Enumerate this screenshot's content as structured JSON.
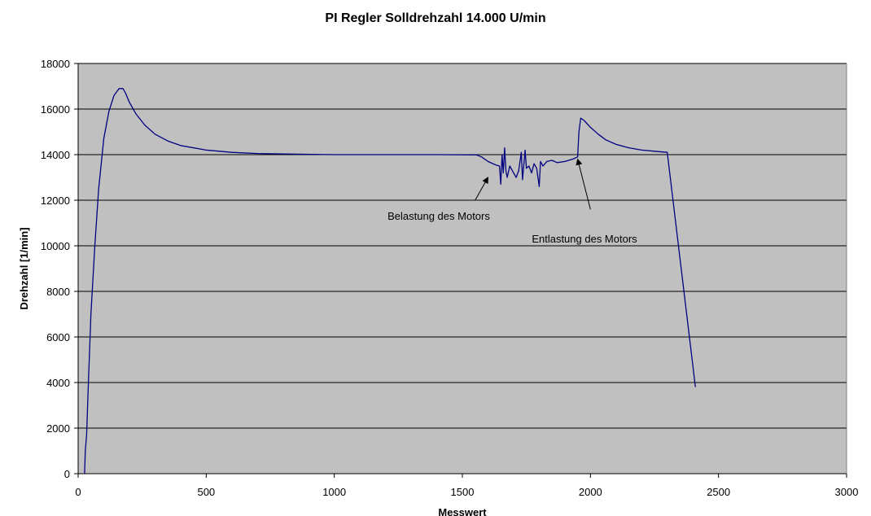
{
  "chart_data": {
    "type": "line",
    "title": "PI Regler Solldrehzahl 14.000 U/min",
    "xlabel": "Messwert",
    "ylabel": "Drehzahl [1/min]",
    "xlim": [
      0,
      3000
    ],
    "ylim": [
      0,
      18000
    ],
    "xticks": [
      0,
      500,
      1000,
      1500,
      2000,
      2500,
      3000
    ],
    "yticks": [
      0,
      2000,
      4000,
      6000,
      8000,
      10000,
      12000,
      14000,
      16000,
      18000
    ],
    "grid": "horizontal",
    "legend": "none",
    "plot_background": "#c0c0c0",
    "line_color": "#000080",
    "series": [
      {
        "points": [
          [
            25,
            0
          ],
          [
            28,
            1000
          ],
          [
            33,
            1700
          ],
          [
            40,
            4000
          ],
          [
            50,
            7000
          ],
          [
            65,
            10000
          ],
          [
            80,
            12500
          ],
          [
            100,
            14700
          ],
          [
            120,
            15900
          ],
          [
            140,
            16600
          ],
          [
            160,
            16900
          ],
          [
            175,
            16900
          ],
          [
            185,
            16700
          ],
          [
            200,
            16300
          ],
          [
            225,
            15800
          ],
          [
            260,
            15300
          ],
          [
            300,
            14900
          ],
          [
            350,
            14600
          ],
          [
            400,
            14400
          ],
          [
            500,
            14200
          ],
          [
            600,
            14100
          ],
          [
            700,
            14050
          ],
          [
            800,
            14030
          ],
          [
            1000,
            14000
          ],
          [
            1200,
            14000
          ],
          [
            1400,
            14000
          ],
          [
            1555,
            13990
          ],
          [
            1575,
            13900
          ],
          [
            1600,
            13700
          ],
          [
            1630,
            13550
          ],
          [
            1645,
            13500
          ],
          [
            1650,
            12700
          ],
          [
            1655,
            14000
          ],
          [
            1660,
            13200
          ],
          [
            1665,
            14300
          ],
          [
            1670,
            13300
          ],
          [
            1675,
            13000
          ],
          [
            1685,
            13500
          ],
          [
            1700,
            13200
          ],
          [
            1710,
            13000
          ],
          [
            1720,
            13300
          ],
          [
            1730,
            14100
          ],
          [
            1735,
            12900
          ],
          [
            1745,
            14200
          ],
          [
            1750,
            13400
          ],
          [
            1760,
            13500
          ],
          [
            1770,
            13200
          ],
          [
            1780,
            13600
          ],
          [
            1790,
            13400
          ],
          [
            1800,
            12600
          ],
          [
            1805,
            13700
          ],
          [
            1815,
            13500
          ],
          [
            1830,
            13700
          ],
          [
            1850,
            13750
          ],
          [
            1870,
            13650
          ],
          [
            1900,
            13700
          ],
          [
            1930,
            13800
          ],
          [
            1950,
            13900
          ],
          [
            1955,
            15000
          ],
          [
            1962,
            15600
          ],
          [
            1975,
            15500
          ],
          [
            2000,
            15200
          ],
          [
            2030,
            14900
          ],
          [
            2060,
            14650
          ],
          [
            2100,
            14450
          ],
          [
            2150,
            14300
          ],
          [
            2200,
            14200
          ],
          [
            2250,
            14150
          ],
          [
            2300,
            14100
          ],
          [
            2410,
            3800
          ]
        ]
      }
    ],
    "annotations": [
      {
        "text": "Belastung des Motors",
        "arrow_from": [
          1550,
          12000
        ],
        "arrow_to": [
          1600,
          13000
        ]
      },
      {
        "text": "Entlastung des Motors",
        "arrow_from": [
          2000,
          11600
        ],
        "arrow_to": [
          1950,
          13800
        ]
      }
    ]
  }
}
